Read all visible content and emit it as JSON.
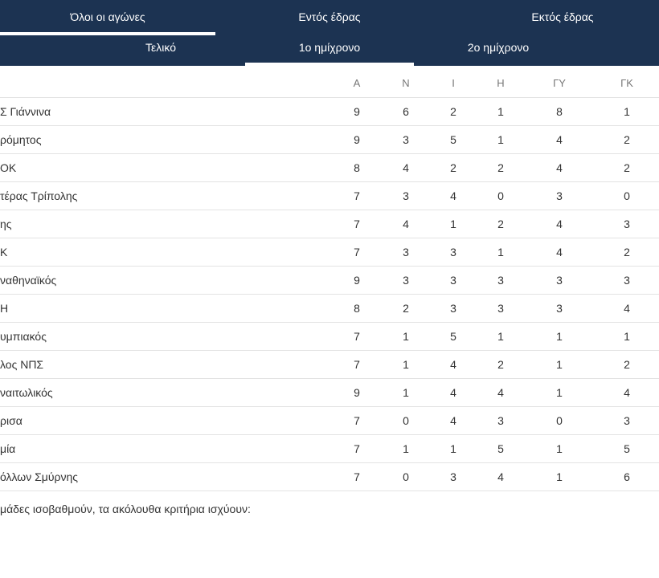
{
  "tabs_main": [
    "Όλοι οι αγώνες",
    "Εντός έδρας",
    "Εκτός έδρας"
  ],
  "tabs_sub": [
    "Τελικό",
    "1ο ημίχρονο",
    "2ο ημίχρονο"
  ],
  "active_main": 0,
  "active_sub": 1,
  "columns": [
    "Α",
    "Ν",
    "Ι",
    "Η",
    "ΓΥ",
    "ΓΚ"
  ],
  "rows": [
    {
      "team": "Σ Γιάννινα",
      "stats": [
        "9",
        "6",
        "2",
        "1",
        "8",
        "1"
      ]
    },
    {
      "team": "ρόμητος",
      "stats": [
        "9",
        "3",
        "5",
        "1",
        "4",
        "2"
      ]
    },
    {
      "team": "ΟΚ",
      "stats": [
        "8",
        "4",
        "2",
        "2",
        "4",
        "2"
      ]
    },
    {
      "team": "τέρας Τρίπολης",
      "stats": [
        "7",
        "3",
        "4",
        "0",
        "3",
        "0"
      ]
    },
    {
      "team": "ης",
      "stats": [
        "7",
        "4",
        "1",
        "2",
        "4",
        "3"
      ]
    },
    {
      "team": "Κ",
      "stats": [
        "7",
        "3",
        "3",
        "1",
        "4",
        "2"
      ]
    },
    {
      "team": "ναθηναϊκός",
      "stats": [
        "9",
        "3",
        "3",
        "3",
        "3",
        "3"
      ]
    },
    {
      "team": "Η",
      "stats": [
        "8",
        "2",
        "3",
        "3",
        "3",
        "4"
      ]
    },
    {
      "team": "υμπιακός",
      "stats": [
        "7",
        "1",
        "5",
        "1",
        "1",
        "1"
      ]
    },
    {
      "team": "λος ΝΠΣ",
      "stats": [
        "7",
        "1",
        "4",
        "2",
        "1",
        "2"
      ]
    },
    {
      "team": "ναιτωλικός",
      "stats": [
        "9",
        "1",
        "4",
        "4",
        "1",
        "4"
      ]
    },
    {
      "team": "ρισα",
      "stats": [
        "7",
        "0",
        "4",
        "3",
        "0",
        "3"
      ]
    },
    {
      "team": "μία",
      "stats": [
        "7",
        "1",
        "1",
        "5",
        "1",
        "5"
      ]
    },
    {
      "team": "όλλων Σμύρνης",
      "stats": [
        "7",
        "0",
        "3",
        "4",
        "1",
        "6"
      ]
    }
  ],
  "footer_text": "μάδες ισοβαθμούν, τα ακόλουθα κριτήρια ισχύουν:",
  "colors": {
    "header_bg": "#1c3352",
    "header_text": "#ffffff",
    "divider": "#e3e3e3"
  }
}
